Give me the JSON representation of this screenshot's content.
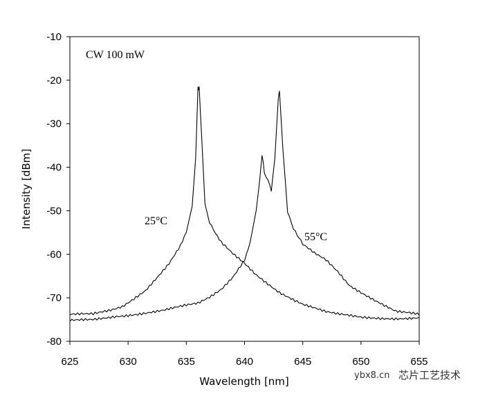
{
  "chart_data": {
    "type": "line",
    "title": "",
    "xlabel": "Wavelength [nm]",
    "ylabel": "Intensity [dBm]",
    "xlim": [
      625,
      655
    ],
    "ylim": [
      -80,
      -10
    ],
    "xticks": [
      "625",
      "630",
      "635",
      "640",
      "645",
      "650",
      "655"
    ],
    "yticks": [
      "-10",
      "-20",
      "-30",
      "-40",
      "-50",
      "-60",
      "-70",
      "-80"
    ],
    "grid": false,
    "annotations": {
      "condition": "CW 100 mW",
      "label_25": "25°C",
      "label_55": "55°C"
    },
    "series": [
      {
        "name": "25°C",
        "x": [
          625,
          627,
          628.5,
          629.5,
          630.5,
          631.5,
          632.5,
          633.5,
          634.5,
          635,
          635.5,
          635.8,
          636,
          636.1,
          636.3,
          636.6,
          637,
          637.5,
          638,
          639,
          640,
          641,
          642,
          643,
          644,
          645,
          646,
          647,
          648,
          650,
          652,
          655
        ],
        "y": [
          -74,
          -74,
          -73,
          -72,
          -70,
          -68,
          -65,
          -62,
          -58,
          -55,
          -49,
          -38,
          -22,
          -21.5,
          -32,
          -48,
          -53,
          -55.5,
          -57.5,
          -60,
          -62,
          -64.5,
          -66.5,
          -68.5,
          -70,
          -71.5,
          -72.5,
          -73.5,
          -74,
          -74.5,
          -74.5,
          -74.5
        ]
      },
      {
        "name": "55°C",
        "x": [
          625,
          627,
          629,
          631,
          633,
          635,
          636,
          637,
          638,
          639,
          640,
          640.5,
          641,
          641.3,
          641.5,
          641.7,
          642,
          642.3,
          642.6,
          642.9,
          643,
          643.3,
          643.7,
          644.2,
          645,
          646,
          647,
          648,
          649,
          650,
          651,
          652,
          653,
          655
        ],
        "y": [
          -75.5,
          -75,
          -74,
          -73.5,
          -73,
          -72,
          -71.5,
          -70,
          -68,
          -65,
          -61,
          -57,
          -50,
          -43,
          -37,
          -41,
          -42.5,
          -45.5,
          -38,
          -24,
          -22.5,
          -36,
          -50,
          -54,
          -58,
          -60,
          -61.5,
          -64,
          -67,
          -68.5,
          -70,
          -71.5,
          -73,
          -74
        ]
      }
    ]
  },
  "watermark": {
    "site": "ybx8.cn",
    "brand": "芯片工艺技术"
  }
}
